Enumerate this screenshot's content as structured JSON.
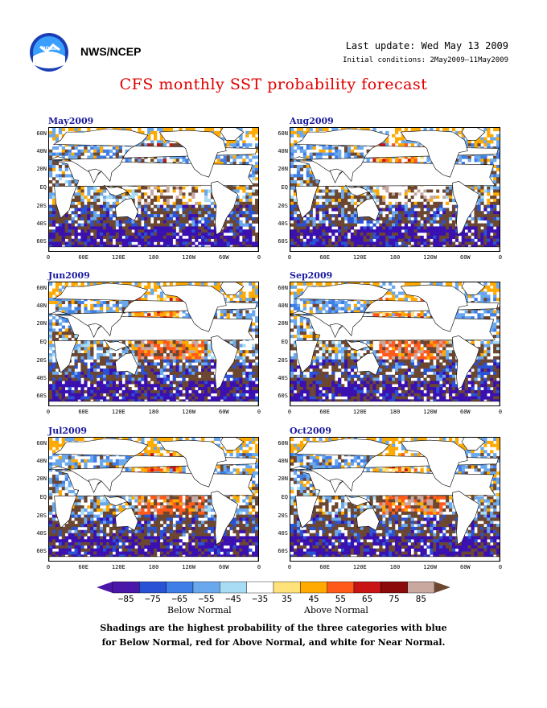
{
  "header": {
    "org": "NWS/NCEP",
    "last_update": "Last update: Wed May 13 2009",
    "initial_conditions": "Initial conditions: 2May2009–11May2009",
    "title": "CFS monthly SST probability forecast",
    "logo_icon": "noaa-logo-icon"
  },
  "panels": [
    {
      "label": "May2009"
    },
    {
      "label": "Aug2009"
    },
    {
      "label": "Jun2009"
    },
    {
      "label": "Sep2009"
    },
    {
      "label": "Jul2009"
    },
    {
      "label": "Oct2009"
    }
  ],
  "axes": {
    "lat_labels": [
      "60N",
      "40N",
      "20N",
      "EQ",
      "20S",
      "40S",
      "60S"
    ],
    "lon_labels": [
      "0",
      "60E",
      "120E",
      "180",
      "120W",
      "60W",
      "0"
    ]
  },
  "colorbar": {
    "labels": [
      "−85",
      "−75",
      "−65",
      "−55",
      "−45",
      "−35",
      "35",
      "45",
      "55",
      "65",
      "75",
      "85"
    ],
    "colors": [
      "#4b17a8",
      "#2a52d4",
      "#3f7ee6",
      "#6aa8ee",
      "#a8dcf5",
      "#ffffff",
      "#ffe27a",
      "#ffaa00",
      "#ff5a1a",
      "#c81414",
      "#8b0a0a",
      "#c9a8a0"
    ],
    "below_label": "Below Normal",
    "above_label": "Above Normal"
  },
  "footnote": {
    "line1": "Shadings are the highest probability of the three categories with blue",
    "line2": "for Below Normal, red for Above Normal, and white for Near Normal."
  },
  "palette": {
    "deep_blue": "#3a10b0",
    "brown": "#6b4631",
    "land": "#ffffff",
    "title_red": "#e00000",
    "label_blue": "#1a1aa0"
  }
}
